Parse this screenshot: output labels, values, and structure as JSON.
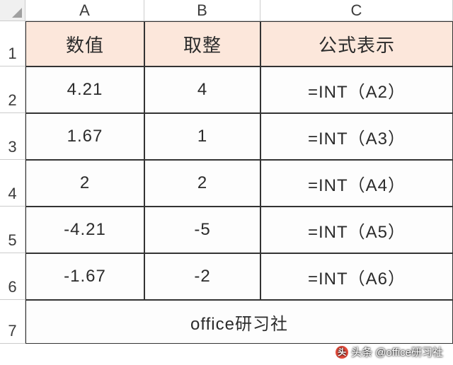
{
  "layout": {
    "grid_template_columns": "36px 168px 164px 272px",
    "grid_template_rows": "30px 64px 66px 66px 66px 66px 66px 62px",
    "row_header_height_first": "30px"
  },
  "colors": {
    "header_bg": "#fce7db",
    "cell_border": "#333333",
    "grid_border": "#cccccc",
    "text": "#2b2b2b",
    "rowcol_text": "#3b3b3b"
  },
  "columns": [
    "A",
    "B",
    "C"
  ],
  "row_numbers": [
    "1",
    "2",
    "3",
    "4",
    "5",
    "6",
    "7"
  ],
  "headers": {
    "c1": "数值",
    "c2": "取整",
    "c3": "公式表示"
  },
  "rows": [
    {
      "val": "4.21",
      "int": "4",
      "formula": "=INT（A2）"
    },
    {
      "val": "1.67",
      "int": "1",
      "formula": "=INT（A3）"
    },
    {
      "val": "2",
      "int": "2",
      "formula": "=INT（A4）"
    },
    {
      "val": "-4.21",
      "int": "-5",
      "formula": "=INT（A5）"
    },
    {
      "val": "-1.67",
      "int": "-2",
      "formula": "=INT（A6）"
    }
  ],
  "footer": "office研习社",
  "watermark": {
    "prefix": "头条",
    "name": "@office研习社"
  }
}
